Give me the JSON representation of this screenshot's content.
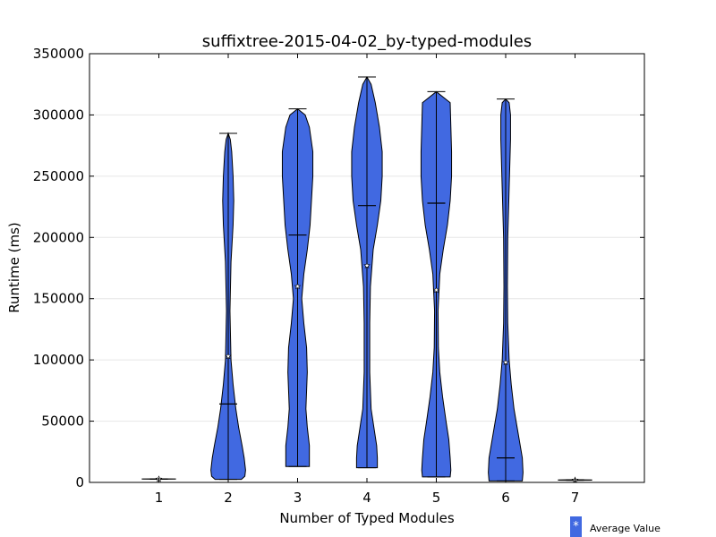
{
  "chart_data": {
    "type": "violin",
    "title": "suffixtree-2015-04-02_by-typed-modules",
    "xlabel": "Number of Typed Modules",
    "ylabel": "Runtime (ms)",
    "ylim": [
      0,
      350000
    ],
    "yticks": [
      0,
      50000,
      100000,
      150000,
      200000,
      250000,
      300000,
      350000
    ],
    "ytick_labels": [
      "0",
      "50000",
      "100000",
      "150000",
      "200000",
      "250000",
      "300000",
      "350000"
    ],
    "categories": [
      "1",
      "2",
      "3",
      "4",
      "5",
      "6",
      "7"
    ],
    "grid": "horizontal",
    "color": "#4169e1",
    "violins": [
      {
        "x": 1,
        "min": 2600,
        "max": 2900,
        "median": 2750,
        "mean": 2750,
        "profile": [
          [
            2600,
            0.0
          ],
          [
            2700,
            0.24
          ],
          [
            2800,
            0.24
          ],
          [
            2900,
            0.0
          ]
        ]
      },
      {
        "x": 2,
        "min": 2500,
        "max": 285000,
        "median": 64000,
        "mean": 103000,
        "profile": [
          [
            2500,
            0.19
          ],
          [
            5000,
            0.24
          ],
          [
            10000,
            0.25
          ],
          [
            20000,
            0.23
          ],
          [
            30000,
            0.2
          ],
          [
            45000,
            0.15
          ],
          [
            60000,
            0.11
          ],
          [
            80000,
            0.07
          ],
          [
            100000,
            0.04
          ],
          [
            140000,
            0.025
          ],
          [
            180000,
            0.04
          ],
          [
            210000,
            0.07
          ],
          [
            230000,
            0.08
          ],
          [
            250000,
            0.07
          ],
          [
            270000,
            0.05
          ],
          [
            280000,
            0.03
          ],
          [
            285000,
            0.0
          ]
        ]
      },
      {
        "x": 3,
        "min": 13000,
        "max": 305000,
        "median": 202000,
        "mean": 160000,
        "profile": [
          [
            13000,
            0.17
          ],
          [
            20000,
            0.17
          ],
          [
            30000,
            0.17
          ],
          [
            45000,
            0.14
          ],
          [
            60000,
            0.12
          ],
          [
            75000,
            0.13
          ],
          [
            90000,
            0.14
          ],
          [
            110000,
            0.13
          ],
          [
            130000,
            0.09
          ],
          [
            150000,
            0.06
          ],
          [
            170000,
            0.09
          ],
          [
            190000,
            0.14
          ],
          [
            210000,
            0.18
          ],
          [
            230000,
            0.2
          ],
          [
            250000,
            0.22
          ],
          [
            270000,
            0.22
          ],
          [
            290000,
            0.17
          ],
          [
            300000,
            0.11
          ],
          [
            305000,
            0.0
          ]
        ]
      },
      {
        "x": 4,
        "min": 12000,
        "max": 331000,
        "median": 226000,
        "mean": 177000,
        "profile": [
          [
            12000,
            0.15
          ],
          [
            20000,
            0.15
          ],
          [
            30000,
            0.14
          ],
          [
            45000,
            0.1
          ],
          [
            60000,
            0.06
          ],
          [
            90000,
            0.04
          ],
          [
            130000,
            0.04
          ],
          [
            160000,
            0.05
          ],
          [
            190000,
            0.09
          ],
          [
            210000,
            0.15
          ],
          [
            230000,
            0.2
          ],
          [
            250000,
            0.22
          ],
          [
            270000,
            0.22
          ],
          [
            290000,
            0.18
          ],
          [
            310000,
            0.12
          ],
          [
            325000,
            0.06
          ],
          [
            331000,
            0.0
          ]
        ]
      },
      {
        "x": 5,
        "min": 4500,
        "max": 319000,
        "median": 228000,
        "mean": 157000,
        "profile": [
          [
            4500,
            0.2
          ],
          [
            10000,
            0.21
          ],
          [
            20000,
            0.2
          ],
          [
            35000,
            0.18
          ],
          [
            50000,
            0.14
          ],
          [
            70000,
            0.09
          ],
          [
            90000,
            0.05
          ],
          [
            110000,
            0.03
          ],
          [
            140000,
            0.025
          ],
          [
            170000,
            0.05
          ],
          [
            190000,
            0.1
          ],
          [
            210000,
            0.16
          ],
          [
            230000,
            0.2
          ],
          [
            250000,
            0.22
          ],
          [
            270000,
            0.22
          ],
          [
            290000,
            0.21
          ],
          [
            310000,
            0.2
          ],
          [
            319000,
            0.0
          ]
        ]
      },
      {
        "x": 6,
        "min": 1200,
        "max": 313000,
        "median": 20000,
        "mean": 98000,
        "profile": [
          [
            1200,
            0.24
          ],
          [
            8000,
            0.25
          ],
          [
            20000,
            0.24
          ],
          [
            40000,
            0.18
          ],
          [
            60000,
            0.12
          ],
          [
            80000,
            0.08
          ],
          [
            100000,
            0.05
          ],
          [
            130000,
            0.03
          ],
          [
            160000,
            0.025
          ],
          [
            200000,
            0.03
          ],
          [
            240000,
            0.05
          ],
          [
            280000,
            0.07
          ],
          [
            300000,
            0.07
          ],
          [
            310000,
            0.05
          ],
          [
            313000,
            0.0
          ]
        ]
      },
      {
        "x": 7,
        "min": 1700,
        "max": 2200,
        "median": 1950,
        "mean": 1950,
        "profile": [
          [
            1700,
            0.0
          ],
          [
            1850,
            0.24
          ],
          [
            2050,
            0.24
          ],
          [
            2200,
            0.0
          ]
        ]
      }
    ],
    "legend": {
      "label": "Average Value",
      "marker": "*",
      "location": "lower-right-outside"
    }
  }
}
